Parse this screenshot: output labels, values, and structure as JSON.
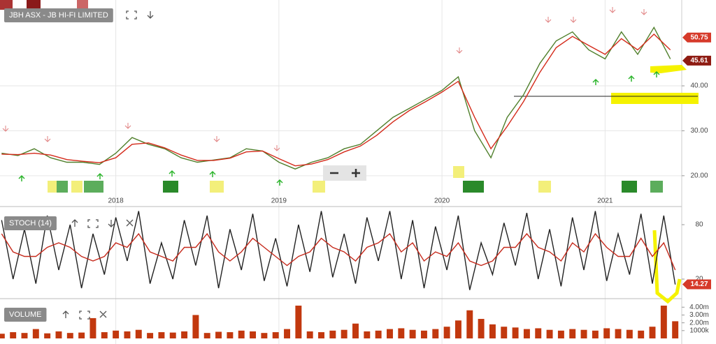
{
  "chart_data": [
    {
      "type": "line",
      "title": "JBH ASX - JB HI-FI LIMITED",
      "x": [
        2017.3,
        2017.4,
        2017.5,
        2017.6,
        2017.7,
        2017.8,
        2017.9,
        2018.0,
        2018.1,
        2018.2,
        2018.3,
        2018.4,
        2018.5,
        2018.6,
        2018.7,
        2018.8,
        2018.9,
        2019.0,
        2019.1,
        2019.2,
        2019.3,
        2019.4,
        2019.5,
        2019.6,
        2019.7,
        2019.8,
        2019.9,
        2020.0,
        2020.1,
        2020.2,
        2020.3,
        2020.4,
        2020.5,
        2020.6,
        2020.7,
        2020.8,
        2020.9,
        2021.0,
        2021.1,
        2021.2,
        2021.3,
        2021.4
      ],
      "series": [
        {
          "color": "#4f7f2b",
          "values": [
            25,
            24.5,
            26,
            24,
            23,
            23,
            22.5,
            25,
            28.5,
            27,
            26,
            24,
            23,
            23.5,
            24,
            26,
            25.5,
            23,
            21.5,
            23,
            24,
            26,
            27,
            30,
            33,
            35,
            37,
            39,
            42,
            30,
            24,
            33,
            38,
            45,
            50,
            52,
            48,
            46,
            52,
            47,
            53,
            46
          ]
        },
        {
          "color": "#d42a1a",
          "values": [
            24.8,
            24.7,
            25,
            24.6,
            23.6,
            23.2,
            22.9,
            24,
            27,
            27.3,
            26.2,
            24.6,
            23.4,
            23.4,
            23.9,
            25.3,
            25.5,
            23.8,
            22.2,
            22.6,
            23.6,
            25.3,
            26.6,
            29,
            32,
            34.5,
            36.5,
            38.6,
            41,
            33,
            26,
            31,
            36.5,
            43,
            48.5,
            51,
            49,
            47,
            50.5,
            48,
            51.5,
            48
          ]
        }
      ],
      "xlim": [
        2017.29,
        2021.47
      ],
      "xticks": [
        2018,
        2019,
        2020,
        2021
      ],
      "ylim": [
        13.3,
        59.1
      ],
      "yticks": [
        {
          "value": 20,
          "label": "20.00"
        },
        {
          "value": 30,
          "label": "30.00"
        },
        {
          "value": 40,
          "label": "40.00"
        }
      ],
      "grid": true,
      "last_value_tags": [
        {
          "value": 50.75,
          "color": "#d63a2a"
        },
        {
          "value": 45.61,
          "color": "#8e1b12"
        }
      ]
    },
    {
      "type": "line",
      "title": "STOCH (14)",
      "x": [
        2017.3,
        2017.37,
        2017.44,
        2017.51,
        2017.58,
        2017.65,
        2017.72,
        2017.79,
        2017.86,
        2017.93,
        2018,
        2018.07,
        2018.14,
        2018.21,
        2018.28,
        2018.35,
        2018.42,
        2018.49,
        2018.56,
        2018.63,
        2018.7,
        2018.77,
        2018.84,
        2018.91,
        2018.98,
        2019.05,
        2019.12,
        2019.19,
        2019.26,
        2019.33,
        2019.4,
        2019.47,
        2019.54,
        2019.61,
        2019.68,
        2019.75,
        2019.82,
        2019.89,
        2019.96,
        2020.03,
        2020.1,
        2020.17,
        2020.24,
        2020.31,
        2020.38,
        2020.45,
        2020.52,
        2020.59,
        2020.66,
        2020.73,
        2020.8,
        2020.87,
        2020.94,
        2021.01,
        2021.08,
        2021.15,
        2021.22,
        2021.29,
        2021.36,
        2021.43
      ],
      "series": [
        {
          "color": "#222222",
          "values": [
            85,
            20,
            75,
            15,
            90,
            30,
            80,
            10,
            70,
            25,
            88,
            40,
            95,
            15,
            60,
            20,
            85,
            35,
            90,
            10,
            75,
            30,
            92,
            18,
            65,
            12,
            80,
            28,
            95,
            22,
            70,
            15,
            88,
            40,
            95,
            20,
            85,
            10,
            78,
            30,
            90,
            8,
            60,
            25,
            82,
            35,
            93,
            20,
            75,
            12,
            88,
            30,
            95,
            18,
            70,
            25,
            92,
            15,
            90,
            14
          ]
        },
        {
          "color": "#c62a1c",
          "values": [
            70,
            50,
            45,
            45,
            55,
            60,
            55,
            45,
            40,
            45,
            60,
            55,
            70,
            50,
            45,
            40,
            55,
            55,
            70,
            50,
            40,
            50,
            65,
            55,
            45,
            35,
            45,
            50,
            65,
            55,
            50,
            40,
            55,
            60,
            70,
            50,
            60,
            40,
            50,
            45,
            60,
            40,
            35,
            40,
            55,
            55,
            70,
            55,
            50,
            40,
            60,
            50,
            70,
            55,
            45,
            45,
            65,
            45,
            60,
            30
          ]
        }
      ],
      "xlim": [
        2017.29,
        2021.47
      ],
      "ylim": [
        0,
        100
      ],
      "yticks": [
        80,
        20
      ],
      "last_value_tags": [
        {
          "value": 14.27,
          "color": "#d63a2a"
        }
      ]
    },
    {
      "type": "bar",
      "title": "VOLUME",
      "x": [
        2017.3,
        2017.37,
        2017.44,
        2017.51,
        2017.58,
        2017.65,
        2017.72,
        2017.79,
        2017.86,
        2017.93,
        2018,
        2018.07,
        2018.14,
        2018.21,
        2018.28,
        2018.35,
        2018.42,
        2018.49,
        2018.56,
        2018.63,
        2018.7,
        2018.77,
        2018.84,
        2018.91,
        2018.98,
        2019.05,
        2019.12,
        2019.19,
        2019.26,
        2019.33,
        2019.4,
        2019.47,
        2019.54,
        2019.61,
        2019.68,
        2019.75,
        2019.82,
        2019.89,
        2019.96,
        2020.03,
        2020.1,
        2020.17,
        2020.24,
        2020.31,
        2020.38,
        2020.45,
        2020.52,
        2020.59,
        2020.66,
        2020.73,
        2020.8,
        2020.87,
        2020.94,
        2021.01,
        2021.08,
        2021.15,
        2021.22,
        2021.29,
        2021.36,
        2021.43
      ],
      "values": [
        600000,
        800000,
        700000,
        1200000,
        650000,
        900000,
        700000,
        750000,
        2600000,
        800000,
        1000000,
        900000,
        1100000,
        700000,
        800000,
        750000,
        900000,
        3000000,
        700000,
        850000,
        800000,
        1000000,
        900000,
        700000,
        800000,
        1200000,
        4200000,
        900000,
        800000,
        1000000,
        1100000,
        1900000,
        900000,
        1000000,
        1200000,
        1300000,
        1100000,
        1000000,
        1200000,
        1500000,
        2300000,
        3600000,
        2500000,
        1800000,
        1500000,
        1400000,
        1200000,
        1300000,
        1100000,
        1000000,
        1200000,
        1100000,
        1000000,
        1300000,
        1200000,
        1100000,
        1000000,
        1500000,
        4200000,
        2200000
      ],
      "color": "#c2380e",
      "xlim": [
        2017.29,
        2021.47
      ],
      "ylim": [
        0,
        4380000
      ],
      "yticks": [
        {
          "value": 4000000,
          "label": "4.00m"
        },
        {
          "value": 3000000,
          "label": "3.00m"
        },
        {
          "value": 2000000,
          "label": "2.00m"
        },
        {
          "value": 1000000,
          "label": "1000k"
        }
      ]
    }
  ]
}
